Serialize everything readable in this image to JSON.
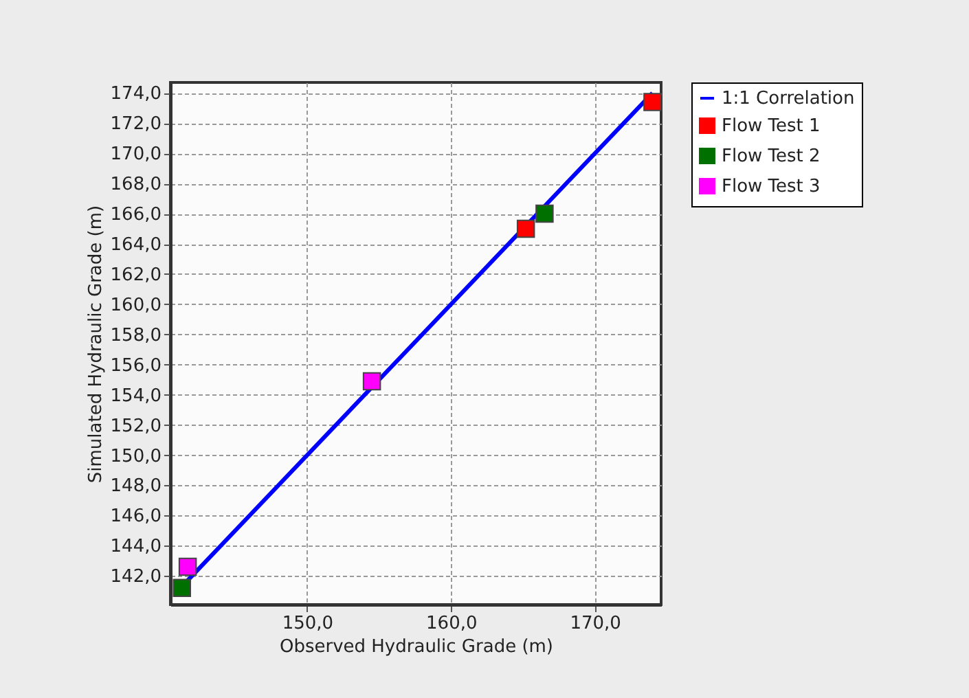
{
  "chart_data": {
    "type": "scatter",
    "xlabel": "Observed Hydraulic Grade (m)",
    "ylabel": "Simulated Hydraulic Grade (m)",
    "xlim": [
      140.5,
      174.6
    ],
    "ylim": [
      140.1,
      174.7
    ],
    "xticks": [
      {
        "value": 150,
        "label": "150,0"
      },
      {
        "value": 160,
        "label": "160,0"
      },
      {
        "value": 170,
        "label": "170,0"
      }
    ],
    "yticks": [
      {
        "value": 142,
        "label": "142,0"
      },
      {
        "value": 144,
        "label": "144,0"
      },
      {
        "value": 146,
        "label": "146,0"
      },
      {
        "value": 148,
        "label": "148,0"
      },
      {
        "value": 150,
        "label": "150,0"
      },
      {
        "value": 152,
        "label": "152,0"
      },
      {
        "value": 154,
        "label": "154,0"
      },
      {
        "value": 156,
        "label": "156,0"
      },
      {
        "value": 158,
        "label": "158,0"
      },
      {
        "value": 160,
        "label": "160,0"
      },
      {
        "value": 162,
        "label": "162,0"
      },
      {
        "value": 164,
        "label": "164,0"
      },
      {
        "value": 166,
        "label": "166,0"
      },
      {
        "value": 168,
        "label": "168,0"
      },
      {
        "value": 170,
        "label": "170,0"
      },
      {
        "value": 172,
        "label": "172,0"
      },
      {
        "value": 174,
        "label": "174,0"
      }
    ],
    "grid": true,
    "legend": "top right",
    "marker": "square",
    "series": [
      {
        "name": "1:1 Correlation",
        "type": "line",
        "marker": "none",
        "color": "#0000ff",
        "x": [
          141.3,
          174.0
        ],
        "values": [
          141.3,
          174.0
        ]
      },
      {
        "name": "Flow Test 1",
        "color": "#ff0000",
        "x": [
          165.2,
          174.0
        ],
        "values": [
          165.0,
          173.4
        ]
      },
      {
        "name": "Flow Test 2",
        "color": "#007000",
        "x": [
          141.3,
          166.5
        ],
        "values": [
          141.2,
          166.0
        ]
      },
      {
        "name": "Flow Test 3",
        "color": "#ff00ff",
        "x": [
          141.7,
          154.5
        ],
        "values": [
          142.6,
          154.9
        ]
      }
    ]
  }
}
